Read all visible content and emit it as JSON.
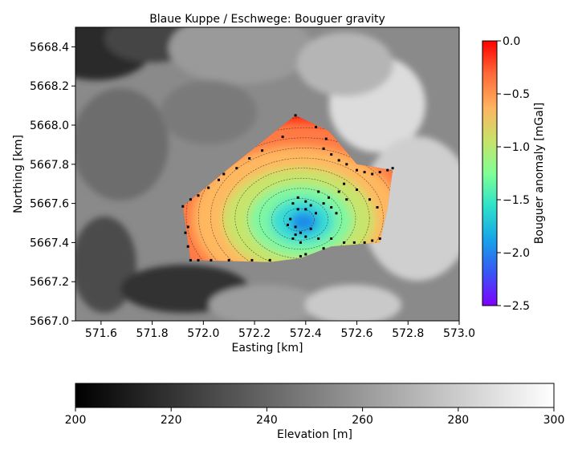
{
  "chart_data": {
    "type": "heatmap",
    "title": "Blaue Kuppe / Eschwege: Bouguer gravity",
    "xlabel": "Easting [km]",
    "ylabel": "Northing [km]",
    "xlim": [
      571.5,
      573.0
    ],
    "ylim": [
      5667.0,
      5668.5
    ],
    "xticks": [
      "571.6",
      "571.8",
      "572.0",
      "572.2",
      "572.4",
      "572.6",
      "572.8",
      "573.0"
    ],
    "xtick_values": [
      571.6,
      571.8,
      572.0,
      572.2,
      572.4,
      572.6,
      572.8,
      573.0
    ],
    "yticks": [
      "5667.0",
      "5667.2",
      "5667.4",
      "5667.6",
      "5667.8",
      "5668.0",
      "5668.2",
      "5668.4"
    ],
    "ytick_values": [
      5667.0,
      5667.2,
      5667.4,
      5667.6,
      5667.8,
      5668.0,
      5668.2,
      5668.4
    ],
    "background_layer": {
      "name": "Elevation",
      "colormap": "grayscale",
      "range": [
        200,
        300
      ]
    },
    "overlay_layer": {
      "name": "Bouguer anomaly",
      "colormap": "rainbow",
      "range": [
        -2.5,
        0.0
      ]
    },
    "survey_polygon": [
      [
        571.92,
        5667.585
      ],
      [
        572.1,
        5667.78
      ],
      [
        572.36,
        5668.05
      ],
      [
        572.49,
        5667.97
      ],
      [
        572.6,
        5667.8
      ],
      [
        572.74,
        5667.77
      ],
      [
        572.72,
        5667.58
      ],
      [
        572.69,
        5667.4
      ],
      [
        572.5,
        5667.38
      ],
      [
        572.38,
        5667.32
      ],
      [
        572.26,
        5667.3
      ],
      [
        571.95,
        5667.31
      ]
    ],
    "anomaly_min_location": [
      572.33,
      5667.5
    ],
    "anomaly_min_value": -2.0,
    "stations": [
      [
        571.92,
        5667.585
      ],
      [
        571.95,
        5667.62
      ],
      [
        571.98,
        5667.64
      ],
      [
        572.02,
        5667.68
      ],
      [
        572.06,
        5667.72
      ],
      [
        572.08,
        5667.75
      ],
      [
        572.13,
        5667.78
      ],
      [
        572.18,
        5667.83
      ],
      [
        572.23,
        5667.87
      ],
      [
        572.31,
        5667.94
      ],
      [
        572.36,
        5668.05
      ],
      [
        572.44,
        5667.99
      ],
      [
        572.48,
        5667.93
      ],
      [
        572.47,
        5667.88
      ],
      [
        572.5,
        5667.85
      ],
      [
        572.53,
        5667.82
      ],
      [
        572.56,
        5667.8
      ],
      [
        572.6,
        5667.77
      ],
      [
        572.63,
        5667.76
      ],
      [
        572.66,
        5667.75
      ],
      [
        572.69,
        5667.76
      ],
      [
        572.72,
        5667.77
      ],
      [
        572.74,
        5667.78
      ],
      [
        572.55,
        5667.7
      ],
      [
        572.53,
        5667.66
      ],
      [
        572.49,
        5667.63
      ],
      [
        572.45,
        5667.66
      ],
      [
        572.4,
        5667.61
      ],
      [
        572.37,
        5667.63
      ],
      [
        572.35,
        5667.6
      ],
      [
        572.37,
        5667.57
      ],
      [
        572.4,
        5667.57
      ],
      [
        572.42,
        5667.59
      ],
      [
        572.44,
        5667.55
      ],
      [
        572.47,
        5667.6
      ],
      [
        572.5,
        5667.58
      ],
      [
        572.52,
        5667.55
      ],
      [
        572.56,
        5667.62
      ],
      [
        572.6,
        5667.67
      ],
      [
        572.65,
        5667.62
      ],
      [
        572.68,
        5667.58
      ],
      [
        572.34,
        5667.52
      ],
      [
        572.36,
        5667.48
      ],
      [
        572.38,
        5667.45
      ],
      [
        572.4,
        5667.43
      ],
      [
        572.36,
        5667.44
      ],
      [
        572.33,
        5667.49
      ],
      [
        572.35,
        5667.42
      ],
      [
        572.38,
        5667.4
      ],
      [
        572.42,
        5667.47
      ],
      [
        572.45,
        5667.42
      ],
      [
        572.47,
        5667.37
      ],
      [
        572.5,
        5667.42
      ],
      [
        572.55,
        5667.4
      ],
      [
        572.59,
        5667.4
      ],
      [
        572.63,
        5667.4
      ],
      [
        572.66,
        5667.41
      ],
      [
        572.69,
        5667.42
      ],
      [
        572.38,
        5667.33
      ],
      [
        572.4,
        5667.34
      ],
      [
        572.26,
        5667.31
      ],
      [
        572.19,
        5667.31
      ],
      [
        572.1,
        5667.31
      ],
      [
        572.03,
        5667.31
      ],
      [
        571.98,
        5667.31
      ],
      [
        571.95,
        5667.31
      ],
      [
        571.94,
        5667.38
      ],
      [
        571.93,
        5667.45
      ],
      [
        571.94,
        5667.48
      ]
    ]
  },
  "colorbars": {
    "anomaly": {
      "label": "Bouguer anomaly [mGal]",
      "ticks": [
        "0.0",
        "−0.5",
        "−1.0",
        "−1.5",
        "−2.0",
        "−2.5"
      ],
      "tick_values": [
        0.0,
        -0.5,
        -1.0,
        -1.5,
        -2.0,
        -2.5
      ]
    },
    "elevation": {
      "label": "Elevation [m]",
      "ticks": [
        "200",
        "220",
        "240",
        "260",
        "280",
        "300"
      ],
      "tick_values": [
        200,
        220,
        240,
        260,
        280,
        300
      ]
    }
  }
}
